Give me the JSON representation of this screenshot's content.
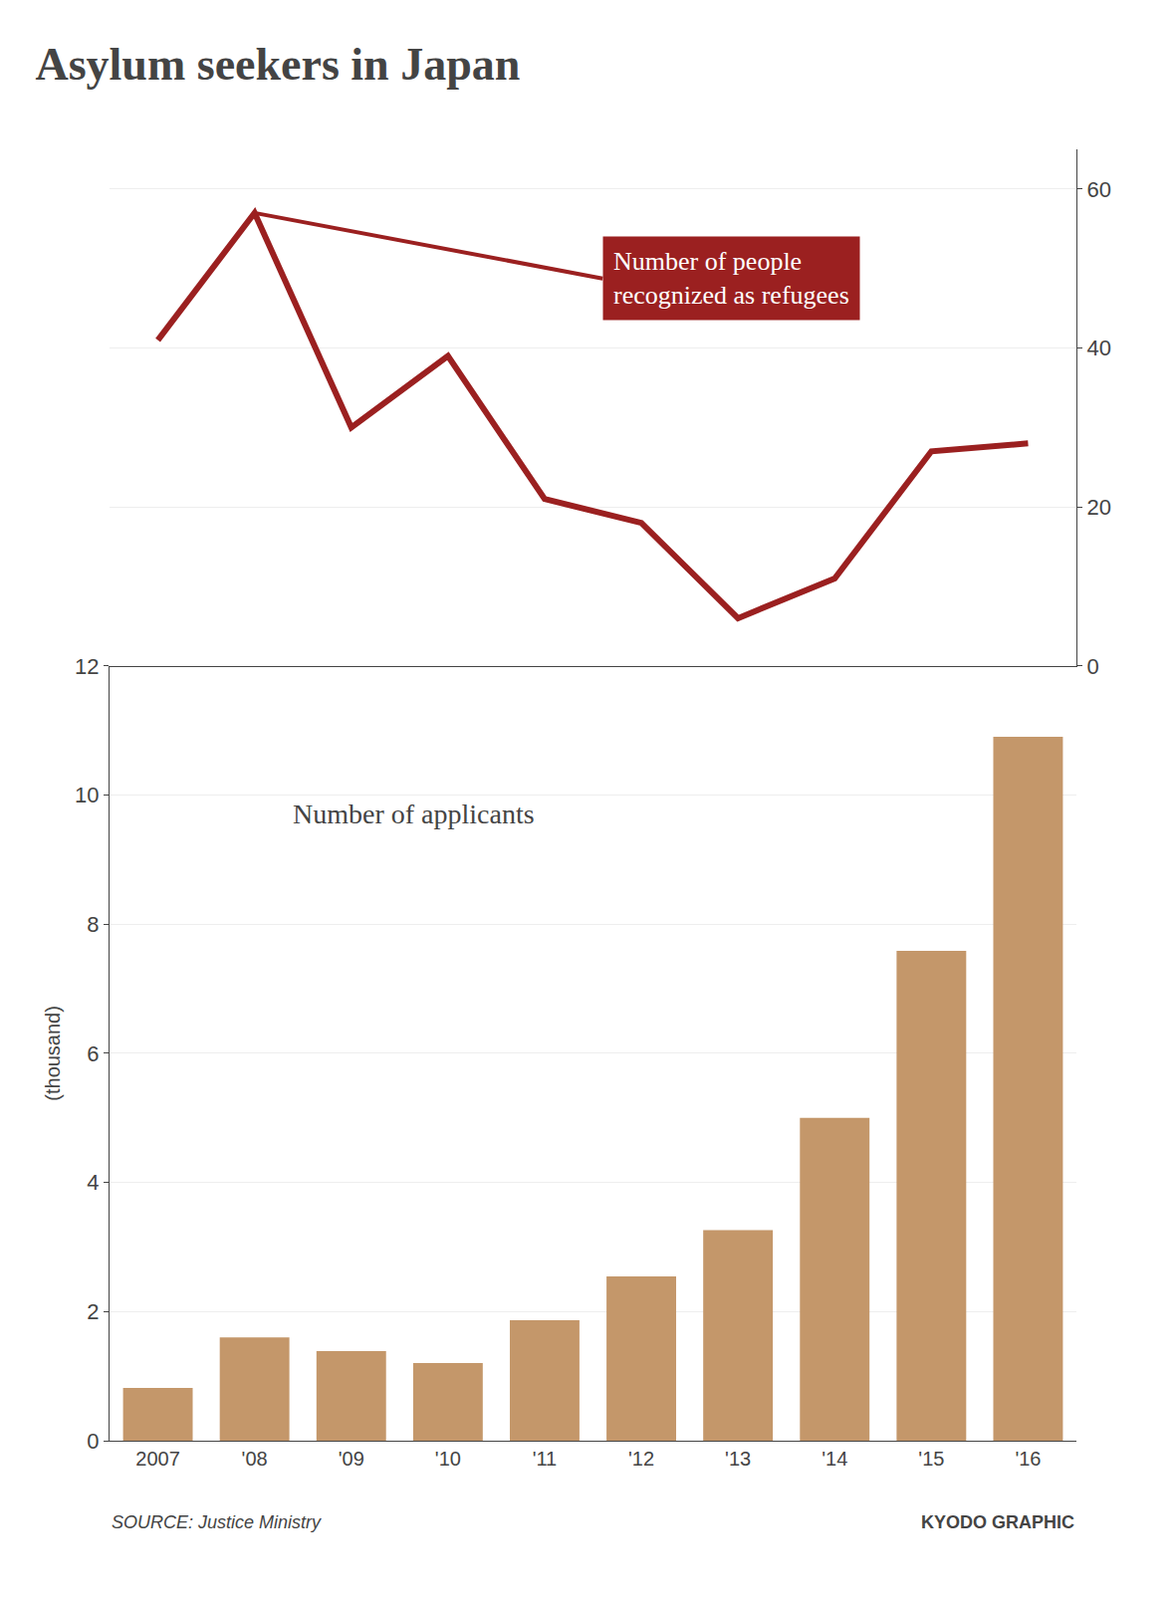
{
  "chart_data": [
    {
      "type": "line",
      "title": "Asylum seekers in Japan",
      "categories": [
        "2007",
        "'08",
        "'09",
        "'10",
        "'11",
        "'12",
        "'13",
        "'14",
        "'15",
        "'16"
      ],
      "values": [
        41,
        57,
        30,
        39,
        21,
        18,
        6,
        11,
        27,
        28
      ],
      "color": "#9b2020",
      "ylim": [
        0,
        65
      ],
      "yticks": [
        0,
        20,
        40,
        60
      ],
      "grid": true,
      "tick_labels": "y",
      "annotations": [
        "Number of people\nrecognized as refugees"
      ]
    },
    {
      "type": "bar",
      "categories": [
        "2007",
        "'08",
        "'09",
        "'10",
        "'11",
        "'12",
        "'13",
        "'14",
        "'15",
        "'16"
      ],
      "values": [
        0.816,
        1.599,
        1.387,
        1.202,
        1.867,
        2.545,
        3.26,
        5.0,
        7.586,
        10.901
      ],
      "color": "#c4976a",
      "ylim": [
        0,
        12
      ],
      "yticks": [
        0,
        2,
        4,
        6,
        8,
        10,
        12
      ],
      "ylabel": "(thousand)",
      "grid": true,
      "annotations": [
        "Number of applicants"
      ],
      "source": "SOURCE: Justice Ministry",
      "credit": "KYODO GRAPHIC"
    }
  ]
}
